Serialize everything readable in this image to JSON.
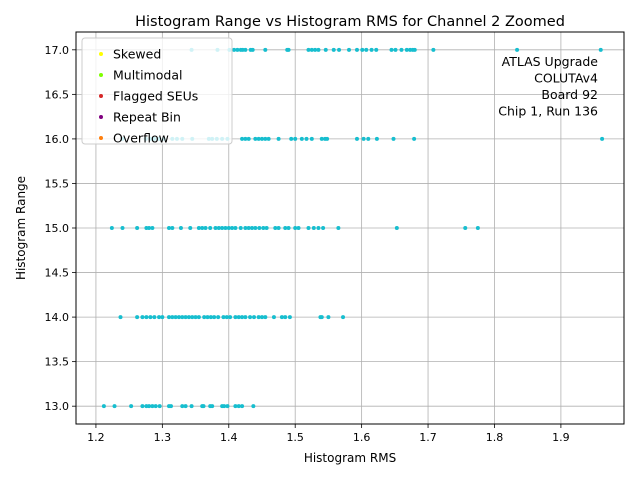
{
  "chart_data": {
    "type": "scatter",
    "title": "Histogram Range vs Histogram RMS for Channel 2 Zoomed",
    "xlabel": "Histogram RMS",
    "ylabel": "Histogram Range",
    "xlim": [
      1.17,
      1.995
    ],
    "ylim": [
      12.8,
      17.2
    ],
    "xticks": [
      "1.2",
      "1.3",
      "1.4",
      "1.5",
      "1.6",
      "1.7",
      "1.8",
      "1.9"
    ],
    "yticks": [
      "13.0",
      "13.5",
      "14.0",
      "14.5",
      "15.0",
      "15.5",
      "16.0",
      "16.5",
      "17.0"
    ],
    "grid": true,
    "legend_position": "top-left",
    "annotation": [
      "ATLAS Upgrade",
      "COLUTAv4",
      "Board 92",
      "Chip 1, Run 136"
    ],
    "legend": [
      {
        "name": "Skewed",
        "color": "#ffff00"
      },
      {
        "name": "Multimodal",
        "color": "#7fff00"
      },
      {
        "name": "Flagged SEUs",
        "color": "#d62728"
      },
      {
        "name": "Repeat Bin",
        "color": "#800080"
      },
      {
        "name": "Overflow",
        "color": "#ff7f0e"
      }
    ],
    "series": [
      {
        "color": "#17becf",
        "points": [
          [
            1.344,
            17
          ],
          [
            1.383,
            17
          ],
          [
            1.401,
            17
          ],
          [
            1.408,
            17
          ],
          [
            1.413,
            17
          ],
          [
            1.418,
            17
          ],
          [
            1.421,
            17
          ],
          [
            1.425,
            17
          ],
          [
            1.433,
            17
          ],
          [
            1.436,
            17
          ],
          [
            1.455,
            17
          ],
          [
            1.488,
            17
          ],
          [
            1.49,
            17
          ],
          [
            1.52,
            17
          ],
          [
            1.525,
            17
          ],
          [
            1.53,
            17
          ],
          [
            1.535,
            17
          ],
          [
            1.546,
            17
          ],
          [
            1.558,
            17
          ],
          [
            1.566,
            17
          ],
          [
            1.581,
            17
          ],
          [
            1.593,
            17
          ],
          [
            1.601,
            17
          ],
          [
            1.607,
            17
          ],
          [
            1.615,
            17
          ],
          [
            1.622,
            17
          ],
          [
            1.645,
            17
          ],
          [
            1.651,
            17
          ],
          [
            1.66,
            17
          ],
          [
            1.668,
            17
          ],
          [
            1.673,
            17
          ],
          [
            1.677,
            17
          ],
          [
            1.68,
            17
          ],
          [
            1.708,
            17
          ],
          [
            1.834,
            17
          ],
          [
            1.96,
            17
          ],
          [
            1.24,
            16
          ],
          [
            1.275,
            16
          ],
          [
            1.282,
            16
          ],
          [
            1.288,
            16
          ],
          [
            1.295,
            16
          ],
          [
            1.302,
            16
          ],
          [
            1.315,
            16
          ],
          [
            1.322,
            16
          ],
          [
            1.33,
            16
          ],
          [
            1.345,
            16
          ],
          [
            1.37,
            16
          ],
          [
            1.375,
            16
          ],
          [
            1.382,
            16
          ],
          [
            1.39,
            16
          ],
          [
            1.398,
            16
          ],
          [
            1.42,
            16
          ],
          [
            1.425,
            16
          ],
          [
            1.43,
            16
          ],
          [
            1.44,
            16
          ],
          [
            1.445,
            16
          ],
          [
            1.45,
            16
          ],
          [
            1.455,
            16
          ],
          [
            1.46,
            16
          ],
          [
            1.475,
            16
          ],
          [
            1.494,
            16
          ],
          [
            1.5,
            16
          ],
          [
            1.51,
            16
          ],
          [
            1.517,
            16
          ],
          [
            1.525,
            16
          ],
          [
            1.54,
            16
          ],
          [
            1.545,
            16
          ],
          [
            1.548,
            16
          ],
          [
            1.593,
            16
          ],
          [
            1.603,
            16
          ],
          [
            1.61,
            16
          ],
          [
            1.623,
            16
          ],
          [
            1.648,
            16
          ],
          [
            1.679,
            16
          ],
          [
            1.962,
            16
          ],
          [
            1.224,
            15
          ],
          [
            1.24,
            15
          ],
          [
            1.262,
            15
          ],
          [
            1.276,
            15
          ],
          [
            1.28,
            15
          ],
          [
            1.285,
            15
          ],
          [
            1.31,
            15
          ],
          [
            1.315,
            15
          ],
          [
            1.328,
            15
          ],
          [
            1.342,
            15
          ],
          [
            1.355,
            15
          ],
          [
            1.36,
            15
          ],
          [
            1.365,
            15
          ],
          [
            1.372,
            15
          ],
          [
            1.38,
            15
          ],
          [
            1.385,
            15
          ],
          [
            1.39,
            15
          ],
          [
            1.395,
            15
          ],
          [
            1.4,
            15
          ],
          [
            1.405,
            15
          ],
          [
            1.41,
            15
          ],
          [
            1.418,
            15
          ],
          [
            1.425,
            15
          ],
          [
            1.43,
            15
          ],
          [
            1.435,
            15
          ],
          [
            1.44,
            15
          ],
          [
            1.446,
            15
          ],
          [
            1.452,
            15
          ],
          [
            1.457,
            15
          ],
          [
            1.47,
            15
          ],
          [
            1.475,
            15
          ],
          [
            1.485,
            15
          ],
          [
            1.49,
            15
          ],
          [
            1.5,
            15
          ],
          [
            1.505,
            15
          ],
          [
            1.52,
            15
          ],
          [
            1.528,
            15
          ],
          [
            1.535,
            15
          ],
          [
            1.542,
            15
          ],
          [
            1.565,
            15
          ],
          [
            1.653,
            15
          ],
          [
            1.756,
            15
          ],
          [
            1.775,
            15
          ],
          [
            1.237,
            14
          ],
          [
            1.262,
            14
          ],
          [
            1.27,
            14
          ],
          [
            1.276,
            14
          ],
          [
            1.282,
            14
          ],
          [
            1.288,
            14
          ],
          [
            1.295,
            14
          ],
          [
            1.3,
            14
          ],
          [
            1.31,
            14
          ],
          [
            1.315,
            14
          ],
          [
            1.32,
            14
          ],
          [
            1.325,
            14
          ],
          [
            1.33,
            14
          ],
          [
            1.335,
            14
          ],
          [
            1.34,
            14
          ],
          [
            1.345,
            14
          ],
          [
            1.35,
            14
          ],
          [
            1.355,
            14
          ],
          [
            1.363,
            14
          ],
          [
            1.368,
            14
          ],
          [
            1.373,
            14
          ],
          [
            1.378,
            14
          ],
          [
            1.384,
            14
          ],
          [
            1.392,
            14
          ],
          [
            1.397,
            14
          ],
          [
            1.402,
            14
          ],
          [
            1.41,
            14
          ],
          [
            1.415,
            14
          ],
          [
            1.42,
            14
          ],
          [
            1.425,
            14
          ],
          [
            1.432,
            14
          ],
          [
            1.438,
            14
          ],
          [
            1.445,
            14
          ],
          [
            1.45,
            14
          ],
          [
            1.455,
            14
          ],
          [
            1.468,
            14
          ],
          [
            1.48,
            14
          ],
          [
            1.485,
            14
          ],
          [
            1.492,
            14
          ],
          [
            1.538,
            14
          ],
          [
            1.54,
            14
          ],
          [
            1.55,
            14
          ],
          [
            1.572,
            14
          ],
          [
            1.212,
            13
          ],
          [
            1.228,
            13
          ],
          [
            1.253,
            13
          ],
          [
            1.27,
            13
          ],
          [
            1.276,
            13
          ],
          [
            1.28,
            13
          ],
          [
            1.285,
            13
          ],
          [
            1.29,
            13
          ],
          [
            1.296,
            13
          ],
          [
            1.31,
            13
          ],
          [
            1.313,
            13
          ],
          [
            1.33,
            13
          ],
          [
            1.335,
            13
          ],
          [
            1.344,
            13
          ],
          [
            1.36,
            13
          ],
          [
            1.362,
            13
          ],
          [
            1.372,
            13
          ],
          [
            1.375,
            13
          ],
          [
            1.39,
            13
          ],
          [
            1.393,
            13
          ],
          [
            1.398,
            13
          ],
          [
            1.41,
            13
          ],
          [
            1.415,
            13
          ],
          [
            1.42,
            13
          ],
          [
            1.437,
            13
          ]
        ]
      }
    ]
  }
}
